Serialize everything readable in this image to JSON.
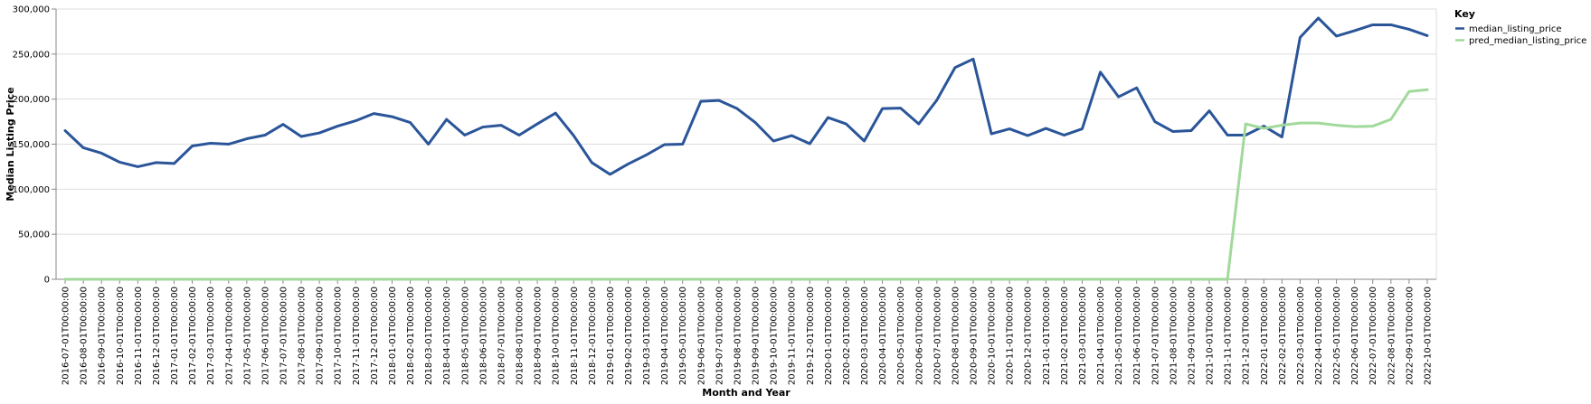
{
  "chart_data": {
    "type": "line",
    "xlabel": "Month and Year",
    "ylabel": "Median Listing Price",
    "ylim": [
      0,
      300000
    ],
    "y_ticks": [
      0,
      50000,
      100000,
      150000,
      200000,
      250000,
      300000
    ],
    "y_tick_labels": [
      "0",
      "50,000",
      "100,000",
      "150,000",
      "200,000",
      "250,000",
      "300,000"
    ],
    "grid": true,
    "legend": {
      "title": "Key",
      "placement": "top-right"
    },
    "x": [
      "2016-07-01T00:00:00",
      "2016-08-01T00:00:00",
      "2016-09-01T00:00:00",
      "2016-10-01T00:00:00",
      "2016-11-01T00:00:00",
      "2016-12-01T00:00:00",
      "2017-01-01T00:00:00",
      "2017-02-01T00:00:00",
      "2017-03-01T00:00:00",
      "2017-04-01T00:00:00",
      "2017-05-01T00:00:00",
      "2017-06-01T00:00:00",
      "2017-07-01T00:00:00",
      "2017-08-01T00:00:00",
      "2017-09-01T00:00:00",
      "2017-10-01T00:00:00",
      "2017-11-01T00:00:00",
      "2017-12-01T00:00:00",
      "2018-01-01T00:00:00",
      "2018-02-01T00:00:00",
      "2018-03-01T00:00:00",
      "2018-04-01T00:00:00",
      "2018-05-01T00:00:00",
      "2018-06-01T00:00:00",
      "2018-07-01T00:00:00",
      "2018-08-01T00:00:00",
      "2018-09-01T00:00:00",
      "2018-10-01T00:00:00",
      "2018-11-01T00:00:00",
      "2018-12-01T00:00:00",
      "2019-01-01T00:00:00",
      "2019-02-01T00:00:00",
      "2019-03-01T00:00:00",
      "2019-04-01T00:00:00",
      "2019-05-01T00:00:00",
      "2019-06-01T00:00:00",
      "2019-07-01T00:00:00",
      "2019-08-01T00:00:00",
      "2019-09-01T00:00:00",
      "2019-10-01T00:00:00",
      "2019-11-01T00:00:00",
      "2019-12-01T00:00:00",
      "2020-01-01T00:00:00",
      "2020-02-01T00:00:00",
      "2020-03-01T00:00:00",
      "2020-04-01T00:00:00",
      "2020-05-01T00:00:00",
      "2020-06-01T00:00:00",
      "2020-07-01T00:00:00",
      "2020-08-01T00:00:00",
      "2020-09-01T00:00:00",
      "2020-10-01T00:00:00",
      "2020-11-01T00:00:00",
      "2020-12-01T00:00:00",
      "2021-01-01T00:00:00",
      "2021-02-01T00:00:00",
      "2021-03-01T00:00:00",
      "2021-04-01T00:00:00",
      "2021-05-01T00:00:00",
      "2021-06-01T00:00:00",
      "2021-07-01T00:00:00",
      "2021-08-01T00:00:00",
      "2021-09-01T00:00:00",
      "2021-10-01T00:00:00",
      "2021-11-01T00:00:00",
      "2021-12-01T00:00:00",
      "2022-01-01T00:00:00",
      "2022-02-01T00:00:00",
      "2022-03-01T00:00:00",
      "2022-04-01T00:00:00",
      "2022-05-01T00:00:00",
      "2022-06-01T00:00:00",
      "2022-07-01T00:00:00",
      "2022-08-01T00:00:00",
      "2022-09-01T00:00:00",
      "2022-10-01T00:00:00"
    ],
    "series": [
      {
        "name": "median_listing_price",
        "color": "#2a5599",
        "values": [
          165000,
          146000,
          140000,
          130000,
          125000,
          129500,
          128500,
          148000,
          151000,
          150000,
          156000,
          160000,
          172000,
          158500,
          162500,
          170000,
          176000,
          184000,
          180500,
          174000,
          150000,
          177500,
          160000,
          169000,
          171000,
          160000,
          172500,
          184500,
          159500,
          129500,
          116500,
          128000,
          138000,
          149500,
          150000,
          197500,
          198500,
          189500,
          174000,
          153500,
          159500,
          150500,
          179500,
          172500,
          153500,
          189500,
          190000,
          172500,
          199000,
          235000,
          244500,
          161500,
          167000,
          159500,
          167500,
          160000,
          167000,
          230000,
          202500,
          212500,
          175000,
          164000,
          165000,
          187000,
          160000,
          160000,
          170000,
          158000,
          268500,
          290000,
          270000,
          276000,
          282500,
          282500,
          277500,
          270500
        ]
      },
      {
        "name": "pred_median_listing_price",
        "color": "#a1d99b",
        "values": [
          0,
          0,
          0,
          0,
          0,
          0,
          0,
          0,
          0,
          0,
          0,
          0,
          0,
          0,
          0,
          0,
          0,
          0,
          0,
          0,
          0,
          0,
          0,
          0,
          0,
          0,
          0,
          0,
          0,
          0,
          0,
          0,
          0,
          0,
          0,
          0,
          0,
          0,
          0,
          0,
          0,
          0,
          0,
          0,
          0,
          0,
          0,
          0,
          0,
          0,
          0,
          0,
          0,
          0,
          0,
          0,
          0,
          0,
          0,
          0,
          0,
          0,
          0,
          0,
          0,
          172500,
          167500,
          171000,
          173500,
          173500,
          171000,
          169500,
          170000,
          177500,
          208500,
          210500
        ]
      }
    ]
  }
}
